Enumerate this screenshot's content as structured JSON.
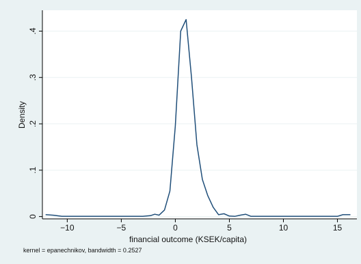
{
  "chart_data": {
    "type": "line",
    "title": "",
    "xlabel": "financial outcome (KSEK/capita)",
    "ylabel": "Density",
    "note": "kernel = epanechnikov, bandwidth = 0.2527",
    "xlim": [
      -12.3,
      16.8
    ],
    "ylim": [
      -0.005,
      0.445
    ],
    "x_ticks": [
      -10,
      -5,
      0,
      5,
      10,
      15
    ],
    "x_tick_labels": [
      "−10",
      "−5",
      "0",
      "5",
      "10",
      "15"
    ],
    "y_ticks": [
      0,
      0.1,
      0.2,
      0.3,
      0.4
    ],
    "y_tick_labels": [
      "0",
      ".1",
      ".2",
      ".3",
      ".4"
    ],
    "grid": "horizontal",
    "series": [
      {
        "color": "#1f4e79",
        "x": [
          -12,
          -11.3,
          -10.5,
          -9,
          -7,
          -5,
          -3,
          -2.3,
          -1.9,
          -1.5,
          -1.0,
          -0.5,
          0.0,
          0.5,
          1.0,
          1.5,
          2.0,
          2.5,
          3.0,
          3.5,
          4.0,
          4.5,
          5.0,
          5.5,
          6.0,
          6.5,
          7.0,
          7.5,
          8.0,
          9,
          11,
          13,
          15,
          15.5,
          16.2
        ],
        "y": [
          0.004,
          0.003,
          0.0005,
          0.0005,
          0.0005,
          0.0005,
          0.0005,
          0.002,
          0.005,
          0.003,
          0.014,
          0.055,
          0.195,
          0.4,
          0.425,
          0.3,
          0.155,
          0.08,
          0.045,
          0.02,
          0.004,
          0.006,
          0.001,
          0.0005,
          0.003,
          0.005,
          0.0005,
          0.0005,
          0.0005,
          0.0005,
          0.0005,
          0.0005,
          0.0005,
          0.004,
          0.004
        ]
      }
    ]
  },
  "colors": {
    "outer_background": "#eaf2f3",
    "plot_background": "#ffffff",
    "line": "#1f4e79",
    "grid": "#eaf2f3",
    "axis": "#000000"
  }
}
